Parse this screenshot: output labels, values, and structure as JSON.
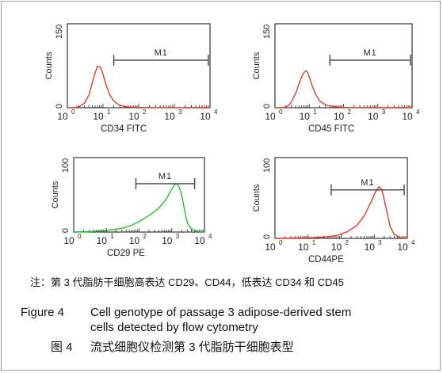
{
  "chart_data": [
    {
      "type": "line",
      "panel": "top-left",
      "xscale": "log",
      "xlim": [
        1,
        10000
      ],
      "ylim": [
        0,
        150
      ],
      "xlabel": "CD34 FITC",
      "ylabel": "Counts",
      "yticks": [
        "0",
        "150"
      ],
      "xticks": [
        "10",
        "10",
        "10",
        "10",
        "10"
      ],
      "xtick_exps": [
        "0",
        "1",
        "2",
        "3",
        "4"
      ],
      "line_color": "#e23a2a",
      "gate": {
        "label": "M1",
        "x_range": [
          20,
          9000
        ],
        "y": 85
      },
      "series": [
        {
          "x": [
            1,
            1.5,
            2.2,
            3,
            4,
            5,
            6,
            7,
            8.5,
            10,
            12,
            15,
            20,
            28,
            40,
            60,
            100,
            200,
            500,
            1000,
            5000,
            10000
          ],
          "y": [
            0,
            0,
            2,
            8,
            22,
            45,
            62,
            74,
            72,
            60,
            42,
            25,
            12,
            5,
            2,
            1,
            0.5,
            0.3,
            0.2,
            0.1,
            0,
            0
          ]
        }
      ]
    },
    {
      "type": "line",
      "panel": "top-right",
      "xscale": "log",
      "xlim": [
        1,
        10000
      ],
      "ylim": [
        0,
        150
      ],
      "xlabel": "CD45 FITC",
      "ylabel": "Counts",
      "yticks": [
        "0",
        "150"
      ],
      "xticks": [
        "10",
        "10",
        "10",
        "10",
        "10"
      ],
      "xtick_exps": [
        "0",
        "1",
        "2",
        "3",
        "4"
      ],
      "line_color": "#e23a2a",
      "gate": {
        "label": "M1",
        "x_range": [
          40,
          9000
        ],
        "y": 85
      },
      "series": [
        {
          "x": [
            1,
            1.5,
            2,
            2.5,
            3,
            4,
            5,
            6,
            7,
            8,
            9,
            10,
            12,
            15,
            20,
            30,
            50,
            100,
            300,
            1000,
            10000
          ],
          "y": [
            0,
            0,
            1,
            4,
            10,
            25,
            42,
            55,
            63,
            66,
            63,
            55,
            40,
            25,
            12,
            5,
            2,
            0.5,
            0.2,
            0,
            0
          ]
        }
      ]
    },
    {
      "type": "line",
      "panel": "bottom-left",
      "xscale": "log",
      "xlim": [
        1,
        10000
      ],
      "ylim": [
        0,
        100
      ],
      "xlabel": "CD29 PE",
      "ylabel": "Counts",
      "yticks": [
        "0",
        "100"
      ],
      "xticks": [
        "10",
        "10",
        "10",
        "10",
        "10"
      ],
      "xtick_exps": [
        "0",
        "1",
        "2",
        "3",
        "4"
      ],
      "line_color": "#22c322",
      "gate": {
        "label": "M1",
        "x_range": [
          80,
          5000
        ],
        "y": 65
      },
      "series": [
        {
          "x": [
            1,
            3,
            10,
            30,
            60,
            100,
            200,
            400,
            700,
            1000,
            1300,
            1600,
            2000,
            2500,
            3000,
            4000,
            6000,
            10000
          ],
          "y": [
            0,
            0.5,
            2,
            5,
            9,
            14,
            22,
            32,
            45,
            58,
            65,
            63,
            50,
            28,
            12,
            4,
            1,
            0
          ]
        }
      ]
    },
    {
      "type": "line",
      "panel": "bottom-right",
      "xscale": "log",
      "xlim": [
        1,
        10000
      ],
      "ylim": [
        0,
        100
      ],
      "xlabel": "CD44PE",
      "ylabel": "Counts",
      "yticks": [
        "0",
        "100"
      ],
      "xticks": [
        "10",
        "10",
        "10",
        "10",
        "10"
      ],
      "xtick_exps": [
        "0",
        "1",
        "2",
        "3",
        "4"
      ],
      "line_color": "#e23a2a",
      "gate": {
        "label": "M1",
        "x_range": [
          50,
          8000
        ],
        "y": 60
      },
      "series": [
        {
          "x": [
            1,
            5,
            15,
            40,
            80,
            150,
            300,
            500,
            800,
            1100,
            1400,
            1700,
            2000,
            2500,
            3000,
            4000,
            6000,
            10000
          ],
          "y": [
            0,
            0.5,
            1,
            2,
            4,
            8,
            16,
            28,
            45,
            58,
            64,
            60,
            48,
            30,
            15,
            5,
            1,
            0
          ]
        }
      ]
    }
  ],
  "note": "注：第 3 代脂肪干细胞高表达 CD29、CD44，低表达 CD34 和 CD45",
  "caption": {
    "label": "Figure 4",
    "en_line1": "Cell genotype of passage 3 adipose-derived stem",
    "en_line2": "cells detected by flow cytometry",
    "cn_label": "图 4",
    "cn_text": "流式细胞仪检测第 3 代脂肪干细胞表型"
  }
}
